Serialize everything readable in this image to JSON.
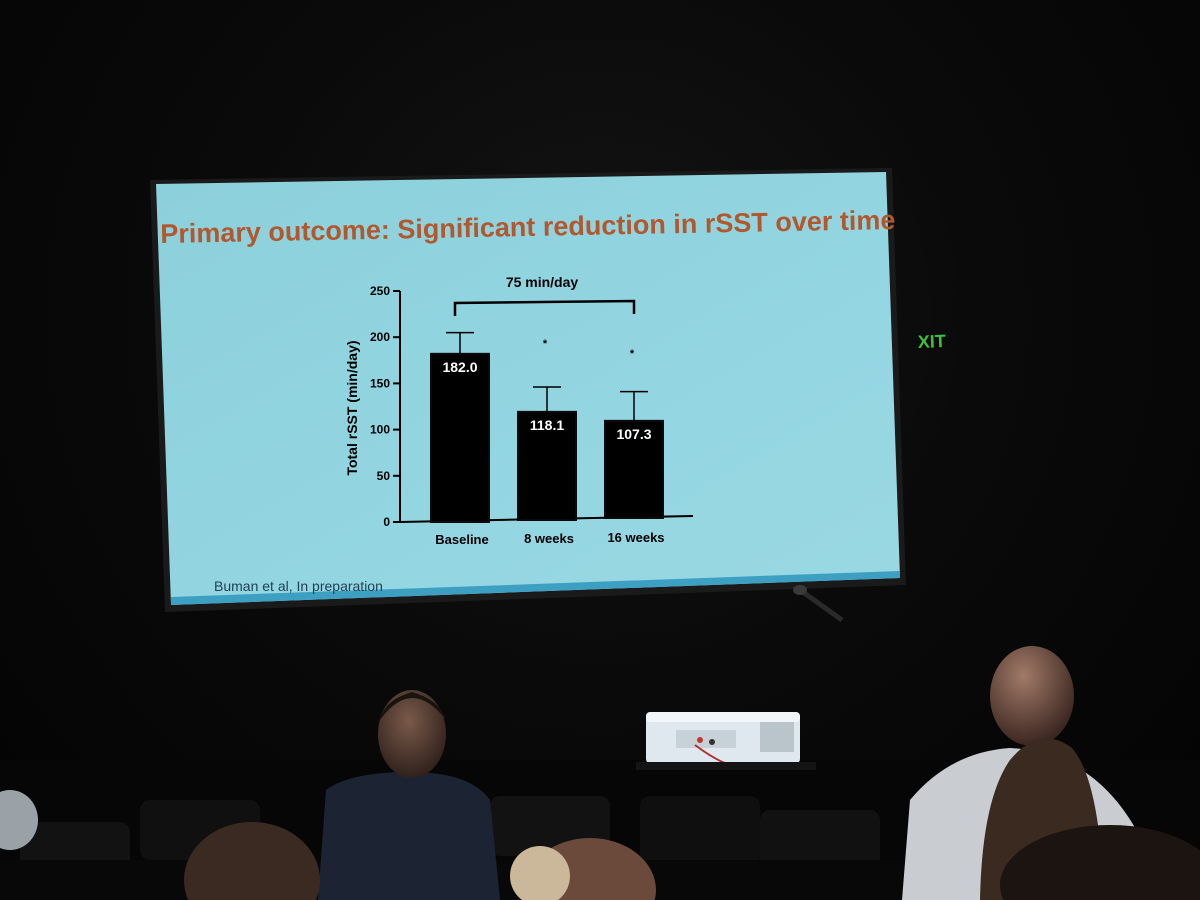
{
  "slide": {
    "title": "Primary outcome: Significant reduction in rSST over time",
    "citation": "Buman et al, In preparation",
    "bracket_label": "75 min/day",
    "background_color": "#8fd3df",
    "title_color": "#b2582f"
  },
  "exit_sign": {
    "text": "XIT",
    "color": "#3fbf3f"
  },
  "chart_data": {
    "type": "bar",
    "categories": [
      "Baseline",
      "8 weeks",
      "16 weeks"
    ],
    "values": [
      182.0,
      118.1,
      107.3
    ],
    "value_labels": [
      "182.0",
      "118.1",
      "107.3"
    ],
    "error_upper": [
      205,
      145,
      139
    ],
    "significance": [
      "",
      "*",
      "*"
    ],
    "ylabel": "Total rSST (min/day)",
    "ylim": [
      0,
      250
    ],
    "yticks": [
      0,
      50,
      100,
      150,
      200,
      250
    ],
    "ytick_labels": [
      "0",
      "50",
      "100",
      "150",
      "200",
      "250"
    ],
    "bar_color": "#000000",
    "grid": false
  }
}
